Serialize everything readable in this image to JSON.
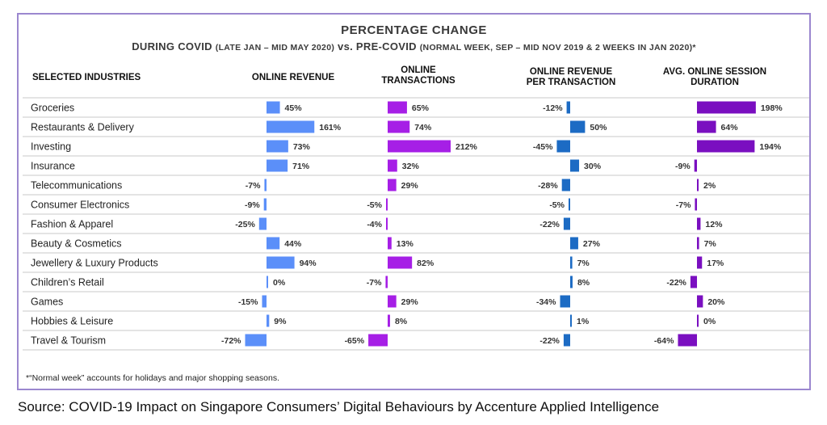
{
  "title": "PERCENTAGE CHANGE",
  "subtitle": {
    "part1": "DURING COVID ",
    "part2": "(LATE JAN – MID MAY 2020)",
    "part3": " vs. PRE-COVID ",
    "part4": "(NORMAL WEEK, SEP – MID NOV 2019 & 2 WEEKS IN JAN 2020)",
    "part5": "*"
  },
  "footnote": "*“Normal week” accounts for holidays and major shopping seasons.",
  "source": "Source: COVID-19 Impact on Singapore Consumers’ Digital Behaviours by Accenture Applied Intelligence",
  "chart_data": {
    "type": "bar",
    "categories_header": "SELECTED INDUSTRIES",
    "categories": [
      "Groceries",
      "Restaurants & Delivery",
      "Investing",
      "Insurance",
      "Telecommunications",
      "Consumer Electronics",
      "Fashion & Apparel",
      "Beauty & Cosmetics",
      "Jewellery & Luxury Products",
      "Children’s Retail",
      "Games",
      "Hobbies & Leisure",
      "Travel & Tourism"
    ],
    "series": [
      {
        "header": [
          "ONLINE REVENUE"
        ],
        "color": "#5b8ff9",
        "values": [
          45,
          161,
          73,
          71,
          -7,
          -9,
          -25,
          44,
          94,
          0,
          -15,
          9,
          -72
        ]
      },
      {
        "header": [
          "ONLINE",
          "TRANSACTIONS"
        ],
        "color": "#a61fe6",
        "values": [
          65,
          74,
          212,
          32,
          29,
          -5,
          -4,
          13,
          82,
          -7,
          29,
          8,
          -65
        ]
      },
      {
        "header": [
          "ONLINE REVENUE",
          "PER TRANSACTION"
        ],
        "color": "#1c6bc4",
        "values": [
          -12,
          50,
          -45,
          30,
          -28,
          -5,
          -22,
          27,
          7,
          8,
          -34,
          1,
          -22
        ]
      },
      {
        "header": [
          "AVG. ONLINE SESSION",
          "DURATION"
        ],
        "color": "#7a0fc0",
        "values": [
          198,
          64,
          194,
          -9,
          2,
          -7,
          12,
          7,
          17,
          -22,
          20,
          0,
          -64
        ]
      }
    ]
  }
}
